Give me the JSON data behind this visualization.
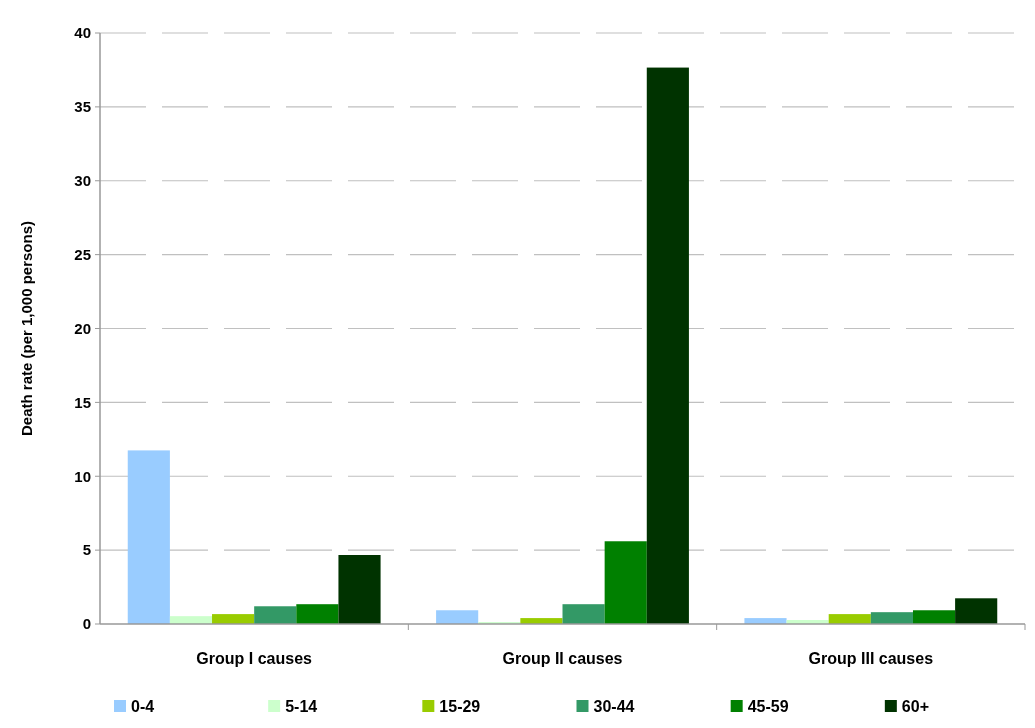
{
  "chart_data": {
    "type": "bar",
    "ylabel": "Death rate (per 1,000 persons)",
    "categories": [
      "Group I causes",
      "Group II causes",
      "Group III causes"
    ],
    "series": [
      {
        "name": "0-4",
        "color": "#99ccff",
        "values": [
          11.75,
          0.93,
          0.4
        ]
      },
      {
        "name": "5-14",
        "color": "#ccffcc",
        "values": [
          0.53,
          0.13,
          0.27
        ]
      },
      {
        "name": "15-29",
        "color": "#99cc00",
        "values": [
          0.67,
          0.4,
          0.67
        ]
      },
      {
        "name": "30-44",
        "color": "#339966",
        "values": [
          1.2,
          1.34,
          0.8
        ]
      },
      {
        "name": "45-59",
        "color": "#008000",
        "values": [
          1.34,
          5.6,
          0.93
        ]
      },
      {
        "name": "60+",
        "color": "#003300",
        "values": [
          4.67,
          37.66,
          1.74
        ]
      }
    ],
    "ylim": [
      0,
      40
    ],
    "yticks": [
      0,
      5,
      10,
      15,
      20,
      25,
      30,
      35,
      40
    ],
    "grid": "y",
    "legend": "bottom"
  }
}
